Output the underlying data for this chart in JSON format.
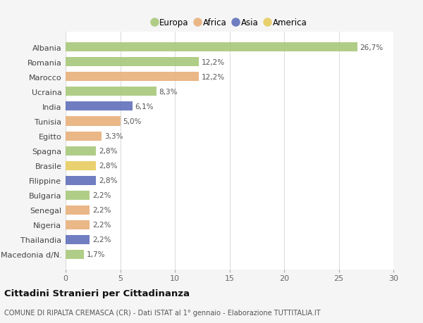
{
  "countries": [
    "Albania",
    "Romania",
    "Marocco",
    "Ucraina",
    "India",
    "Tunisia",
    "Egitto",
    "Spagna",
    "Brasile",
    "Filippine",
    "Bulgaria",
    "Senegal",
    "Nigeria",
    "Thailandia",
    "Macedonia d/N."
  ],
  "values": [
    26.7,
    12.2,
    12.2,
    8.3,
    6.1,
    5.0,
    3.3,
    2.8,
    2.8,
    2.8,
    2.2,
    2.2,
    2.2,
    2.2,
    1.7
  ],
  "labels": [
    "26,7%",
    "12,2%",
    "12,2%",
    "8,3%",
    "6,1%",
    "5,0%",
    "3,3%",
    "2,8%",
    "2,8%",
    "2,8%",
    "2,2%",
    "2,2%",
    "2,2%",
    "2,2%",
    "1,7%"
  ],
  "continents": [
    "Europa",
    "Europa",
    "Africa",
    "Europa",
    "Asia",
    "Africa",
    "Africa",
    "Europa",
    "America",
    "Asia",
    "Europa",
    "Africa",
    "Africa",
    "Asia",
    "Europa"
  ],
  "continent_colors": {
    "Europa": "#a8c87a",
    "Africa": "#e8b07a",
    "Asia": "#6070bb",
    "America": "#e8cc60"
  },
  "legend_order": [
    "Europa",
    "Africa",
    "Asia",
    "America"
  ],
  "title": "Cittadini Stranieri per Cittadinanza",
  "subtitle": "COMUNE DI RIPALTA CREMASCA (CR) - Dati ISTAT al 1° gennaio - Elaborazione TUTTITALIA.IT",
  "xlim": [
    0,
    30
  ],
  "xticks": [
    0,
    5,
    10,
    15,
    20,
    25,
    30
  ],
  "background_color": "#f5f5f5",
  "bar_background": "#ffffff",
  "grid_color": "#dddddd",
  "figsize": [
    6.0,
    4.6
  ],
  "dpi": 100
}
